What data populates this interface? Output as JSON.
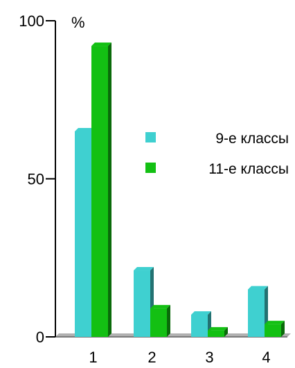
{
  "chart_data": {
    "type": "bar",
    "title": "",
    "xlabel": "",
    "ylabel": "%",
    "ylim": [
      0,
      100
    ],
    "y_ticks": [
      "0",
      "50",
      "100"
    ],
    "categories": [
      "1",
      "2",
      "3",
      "4"
    ],
    "series": [
      {
        "name": "9-е классы",
        "values": [
          65,
          21,
          7,
          15
        ],
        "color": "#3fd0d0"
      },
      {
        "name": "11-е классы",
        "values": [
          92,
          9,
          2,
          4
        ],
        "color": "#13c013"
      }
    ],
    "legend_position": "right",
    "grid": false,
    "bar_style": "3d"
  }
}
